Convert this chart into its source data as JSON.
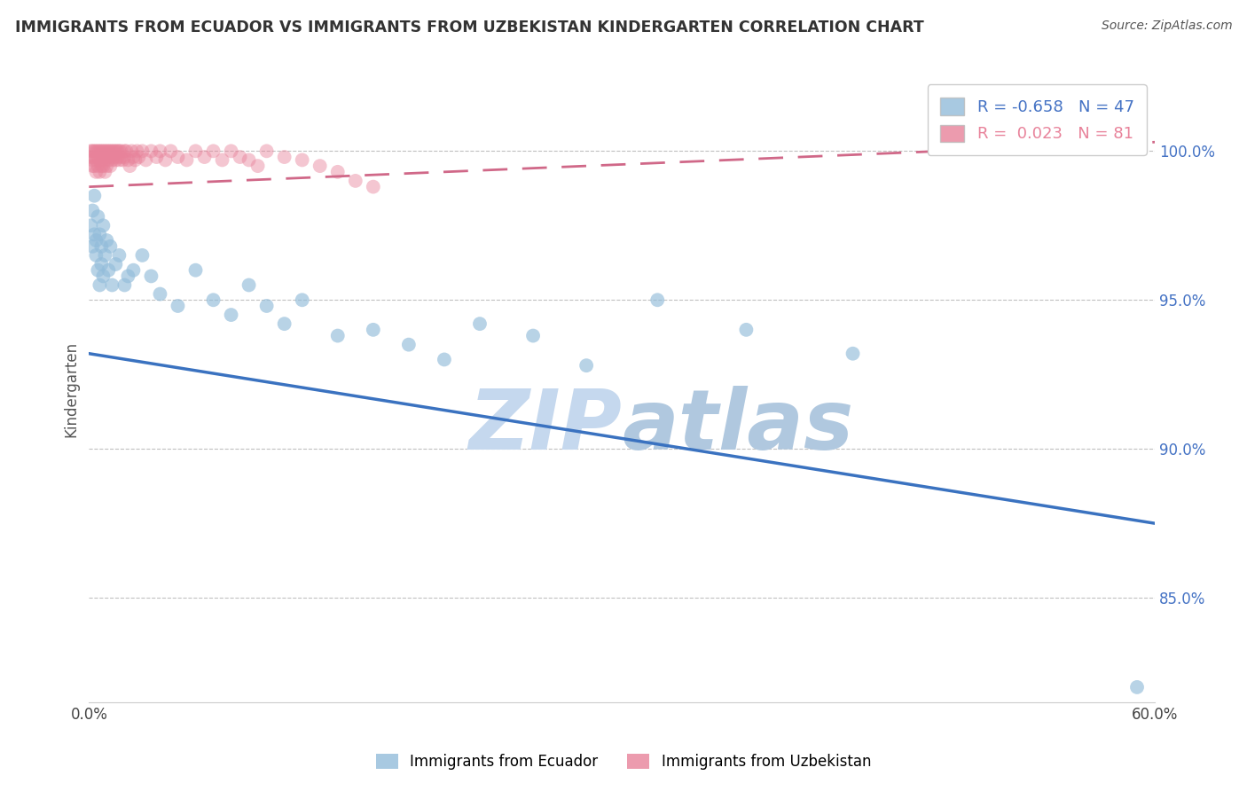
{
  "title": "IMMIGRANTS FROM ECUADOR VS IMMIGRANTS FROM UZBEKISTAN KINDERGARTEN CORRELATION CHART",
  "source": "Source: ZipAtlas.com",
  "ylabel": "Kindergarten",
  "legend_label_blue": "Immigrants from Ecuador",
  "legend_label_pink": "Immigrants from Uzbekistan",
  "R_blue": -0.658,
  "N_blue": 47,
  "R_pink": 0.023,
  "N_pink": 81,
  "x_min": 0.0,
  "x_max": 0.6,
  "y_min": 0.815,
  "y_max": 1.025,
  "yticks": [
    0.85,
    0.9,
    0.95,
    1.0
  ],
  "ytick_labels": [
    "85.0%",
    "90.0%",
    "95.0%",
    "100.0%"
  ],
  "xticks": [
    0.0,
    0.1,
    0.2,
    0.3,
    0.4,
    0.5,
    0.6
  ],
  "xtick_labels": [
    "0.0%",
    "",
    "",
    "",
    "",
    "",
    "60.0%"
  ],
  "color_blue": "#92BCDA",
  "color_pink": "#E8829A",
  "trend_blue": "#3A72C0",
  "trend_pink": "#D06888",
  "watermark_zip_color": "#C5D8EE",
  "watermark_atlas_color": "#B0C8E0",
  "background_color": "#FFFFFF",
  "blue_trend_x0": 0.0,
  "blue_trend_y0": 0.932,
  "blue_trend_x1": 0.6,
  "blue_trend_y1": 0.875,
  "pink_trend_x0": 0.0,
  "pink_trend_y0": 0.988,
  "pink_trend_x1": 0.6,
  "pink_trend_y1": 1.003,
  "blue_scatter_x": [
    0.001,
    0.002,
    0.002,
    0.003,
    0.003,
    0.004,
    0.004,
    0.005,
    0.005,
    0.006,
    0.006,
    0.007,
    0.007,
    0.008,
    0.008,
    0.009,
    0.01,
    0.011,
    0.012,
    0.013,
    0.015,
    0.017,
    0.02,
    0.022,
    0.025,
    0.03,
    0.035,
    0.04,
    0.05,
    0.06,
    0.07,
    0.08,
    0.09,
    0.1,
    0.11,
    0.12,
    0.14,
    0.16,
    0.18,
    0.2,
    0.22,
    0.25,
    0.28,
    0.32,
    0.37,
    0.43,
    0.59
  ],
  "blue_scatter_y": [
    0.975,
    0.98,
    0.968,
    0.972,
    0.985,
    0.97,
    0.965,
    0.978,
    0.96,
    0.972,
    0.955,
    0.968,
    0.962,
    0.975,
    0.958,
    0.965,
    0.97,
    0.96,
    0.968,
    0.955,
    0.962,
    0.965,
    0.955,
    0.958,
    0.96,
    0.965,
    0.958,
    0.952,
    0.948,
    0.96,
    0.95,
    0.945,
    0.955,
    0.948,
    0.942,
    0.95,
    0.938,
    0.94,
    0.935,
    0.93,
    0.942,
    0.938,
    0.928,
    0.95,
    0.94,
    0.932,
    0.82
  ],
  "pink_scatter_x": [
    0.001,
    0.001,
    0.002,
    0.002,
    0.002,
    0.003,
    0.003,
    0.003,
    0.004,
    0.004,
    0.004,
    0.005,
    0.005,
    0.005,
    0.006,
    0.006,
    0.006,
    0.007,
    0.007,
    0.007,
    0.008,
    0.008,
    0.008,
    0.009,
    0.009,
    0.009,
    0.01,
    0.01,
    0.01,
    0.011,
    0.011,
    0.012,
    0.012,
    0.012,
    0.013,
    0.013,
    0.014,
    0.014,
    0.015,
    0.015,
    0.016,
    0.016,
    0.017,
    0.017,
    0.018,
    0.018,
    0.019,
    0.02,
    0.02,
    0.021,
    0.022,
    0.023,
    0.024,
    0.025,
    0.026,
    0.027,
    0.028,
    0.03,
    0.032,
    0.035,
    0.038,
    0.04,
    0.043,
    0.046,
    0.05,
    0.055,
    0.06,
    0.065,
    0.07,
    0.075,
    0.08,
    0.085,
    0.09,
    0.095,
    0.1,
    0.11,
    0.12,
    0.13,
    0.14,
    0.15,
    0.16
  ],
  "pink_scatter_y": [
    1.0,
    0.998,
    1.0,
    0.997,
    0.995,
    1.0,
    0.998,
    0.995,
    1.0,
    0.997,
    0.993,
    1.0,
    0.998,
    0.995,
    1.0,
    0.997,
    0.993,
    1.0,
    0.997,
    0.995,
    1.0,
    0.998,
    0.995,
    1.0,
    0.997,
    0.993,
    1.0,
    0.998,
    0.995,
    1.0,
    0.997,
    1.0,
    0.998,
    0.995,
    1.0,
    0.997,
    1.0,
    0.998,
    1.0,
    0.997,
    1.0,
    0.998,
    1.0,
    0.997,
    1.0,
    0.998,
    0.997,
    1.0,
    0.998,
    1.0,
    0.997,
    0.995,
    1.0,
    0.998,
    0.997,
    1.0,
    0.998,
    1.0,
    0.997,
    1.0,
    0.998,
    1.0,
    0.997,
    1.0,
    0.998,
    0.997,
    1.0,
    0.998,
    1.0,
    0.997,
    1.0,
    0.998,
    0.997,
    0.995,
    1.0,
    0.998,
    0.997,
    0.995,
    0.993,
    0.99,
    0.988
  ]
}
